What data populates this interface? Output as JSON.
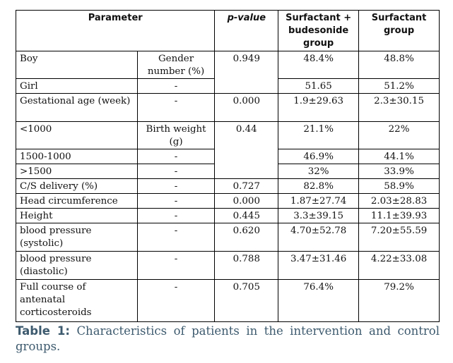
{
  "headers": {
    "parameter": "Parameter",
    "pvalue": "p-value",
    "group1": "Surfactant + budesonide group",
    "group2": "Surfactant group"
  },
  "rows": {
    "boy": {
      "label": "Boy",
      "sub": "Gender number (%)",
      "p": "0.949",
      "g1": "48.4%",
      "g2": "48.8%"
    },
    "girl": {
      "label": "Girl",
      "sub": "-",
      "g1": "51.65",
      "g2": "51.2%"
    },
    "gestational": {
      "label": "Gestational age (week)",
      "sub": "-",
      "p": "0.000",
      "g1": "1.9±29.63",
      "g2": "2.3±30.15"
    },
    "lt1000": {
      "label": "<1000",
      "sub": "Birth weight (g)",
      "p": "0.44",
      "g1": "21.1%",
      "g2": "22%"
    },
    "mid": {
      "label": "1500-1000",
      "sub": "-",
      "g1": "46.9%",
      "g2": "44.1%"
    },
    "gt1500": {
      "label": ">1500",
      "sub": "-",
      "g1": "32%",
      "g2": "33.9%"
    },
    "cs": {
      "label": "C/S delivery (%)",
      "sub": "-",
      "p": "0.727",
      "g1": "82.8%",
      "g2": "58.9%"
    },
    "head": {
      "label": "Head circumference",
      "sub": "-",
      "p": "0.000",
      "g1": "1.87±27.74",
      "g2": "2.03±28.83"
    },
    "height": {
      "label": "Height",
      "sub": "-",
      "p": "0.445",
      "g1": "3.3±39.15",
      "g2": "11.1±39.93"
    },
    "bps": {
      "label": "blood pressure (systolic)",
      "sub": "-",
      "p": "0.620",
      "g1": "4.70±52.78",
      "g2": "7.20±55.59"
    },
    "bpd": {
      "label": "blood pressure (diastolic)",
      "sub": "-",
      "p": "0.788",
      "g1": "3.47±31.46",
      "g2": "4.22±33.08"
    },
    "steroids": {
      "label": "Full course of antenatal corticosteroids",
      "sub": "-",
      "p": "0.705",
      "g1": "76.4%",
      "g2": "79.2%"
    }
  },
  "caption": {
    "label": "Table 1:",
    "text": "Characteristics of patients in the intervention and control groups."
  }
}
